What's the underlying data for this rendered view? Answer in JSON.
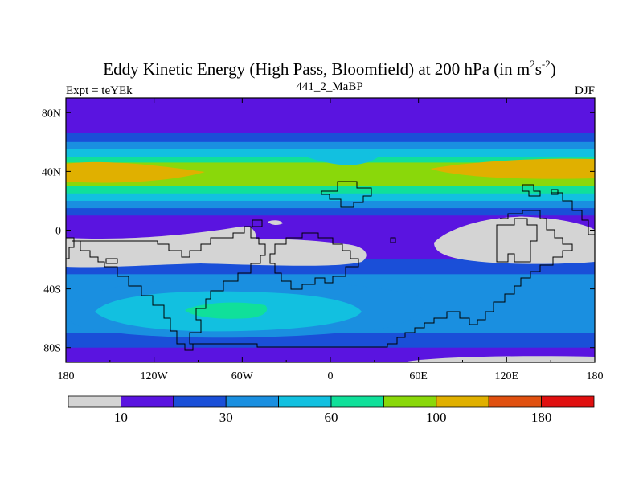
{
  "chart_data": {
    "type": "heatmap",
    "title": "Eddy Kinetic Energy (High Pass, Bloomfield) at 200 hPa (in m",
    "title_sup1": "2",
    "title_mid": "s",
    "title_sup2": "-2",
    "title_end": ")",
    "left_subtitle": "Expt = teYEk",
    "center_subtitle": "441_2_MaBP",
    "right_subtitle": "DJF",
    "x_range": [
      -180,
      180
    ],
    "y_range": [
      -90,
      90
    ],
    "x_ticks": [
      {
        "value": -180,
        "label": "180"
      },
      {
        "value": -120,
        "label": "120W"
      },
      {
        "value": -60,
        "label": "60W"
      },
      {
        "value": 0,
        "label": "0"
      },
      {
        "value": 60,
        "label": "60E"
      },
      {
        "value": 120,
        "label": "120E"
      },
      {
        "value": 180,
        "label": "180"
      }
    ],
    "y_ticks": [
      {
        "value": 80,
        "label": "80N"
      },
      {
        "value": 40,
        "label": "40N"
      },
      {
        "value": 0,
        "label": "0"
      },
      {
        "value": -40,
        "label": "40S"
      },
      {
        "value": -80,
        "label": "80S"
      }
    ],
    "colorbar": {
      "colors": [
        "#d4d4d4",
        "#5a14e0",
        "#1a4fd8",
        "#1a8fe0",
        "#12c0e0",
        "#10e09a",
        "#8ad80a",
        "#e0b000",
        "#e05010",
        "#e01010"
      ],
      "labels": [
        {
          "boundary": 1,
          "label": "10"
        },
        {
          "boundary": 3,
          "label": "30"
        },
        {
          "boundary": 5,
          "label": "60"
        },
        {
          "boundary": 7,
          "label": "100"
        },
        {
          "boundary": 9,
          "label": "180"
        }
      ]
    },
    "field_bands": [
      {
        "lat_min": 66,
        "lat_max": 90,
        "level": 1
      },
      {
        "lat_min": 60,
        "lat_max": 66,
        "level": 2
      },
      {
        "lat_min": 55,
        "lat_max": 60,
        "level": 3
      },
      {
        "lat_min": 50,
        "lat_max": 55,
        "level": 4
      },
      {
        "lat_min": 46,
        "lat_max": 50,
        "level": 5
      },
      {
        "lat_min": 30,
        "lat_max": 46,
        "level": 6
      },
      {
        "lat_min": 25,
        "lat_max": 30,
        "level": 5
      },
      {
        "lat_min": 20,
        "lat_max": 25,
        "level": 4
      },
      {
        "lat_min": 15,
        "lat_max": 20,
        "level": 3
      },
      {
        "lat_min": 10,
        "lat_max": 15,
        "level": 2
      },
      {
        "lat_min": -20,
        "lat_max": 10,
        "level": 1
      },
      {
        "lat_min": -30,
        "lat_max": -20,
        "level": 2
      },
      {
        "lat_min": -70,
        "lat_max": -30,
        "level": 3
      },
      {
        "lat_min": -80,
        "lat_max": -70,
        "level": 2
      },
      {
        "lat_min": -90,
        "lat_max": -80,
        "level": 1
      }
    ]
  }
}
